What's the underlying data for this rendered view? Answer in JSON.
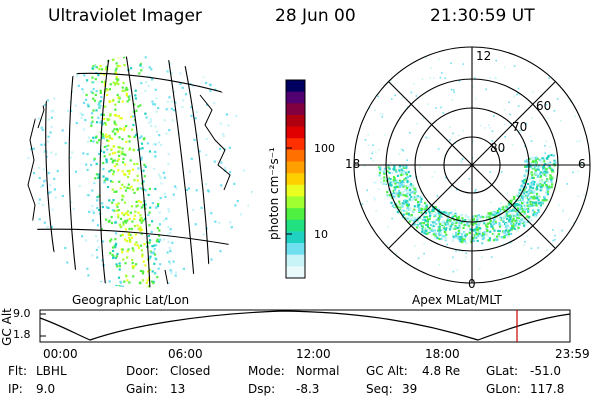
{
  "header": {
    "instrument": "Ultraviolet Imager",
    "date": "28 Jun 00",
    "time": "21:30:59 UT"
  },
  "colorbar": {
    "unit_label": "photon cm⁻²s⁻¹",
    "ticks": [
      "100",
      "10"
    ],
    "colors": [
      "#000060",
      "#500070",
      "#800040",
      "#b00010",
      "#e00000",
      "#ff3000",
      "#ff7000",
      "#ffa000",
      "#ffd000",
      "#e8ff20",
      "#a0ff30",
      "#50f040",
      "#20e080",
      "#20d0c0",
      "#70e0f0",
      "#c8f4f8",
      "#eafafc"
    ]
  },
  "left_panel": {
    "label": "Geographic Lat/Lon"
  },
  "right_panel": {
    "label": "Apex MLat/MLT",
    "mlt_labels": {
      "top": "12",
      "right": "6",
      "bottom": "0",
      "left": "18"
    },
    "lat_labels": [
      "60",
      "70",
      "80"
    ]
  },
  "altitude_plot": {
    "ylabel": "GC Alt",
    "yticks": [
      "9.0",
      "1.8"
    ],
    "xticks": [
      "00:00",
      "06:00",
      "12:00",
      "18:00",
      "23:59"
    ],
    "marker_color": "#cc0000"
  },
  "info": {
    "flt": {
      "label": "Flt:",
      "value": "LBHL"
    },
    "ip": {
      "label": "IP:",
      "value": "9.0"
    },
    "door": {
      "label": "Door:",
      "value": "Closed"
    },
    "gain": {
      "label": "Gain:",
      "value": "13"
    },
    "mode": {
      "label": "Mode:",
      "value": "Normal"
    },
    "dsp": {
      "label": "Dsp:",
      "value": "-8.3"
    },
    "gcalt": {
      "label": "GC Alt:",
      "value": "4.8 Re"
    },
    "seq": {
      "label": "Seq:",
      "value": "39"
    },
    "glat": {
      "label": "GLat:",
      "value": "-51.0"
    },
    "glon": {
      "label": "GLon:",
      "value": "117.8"
    }
  }
}
